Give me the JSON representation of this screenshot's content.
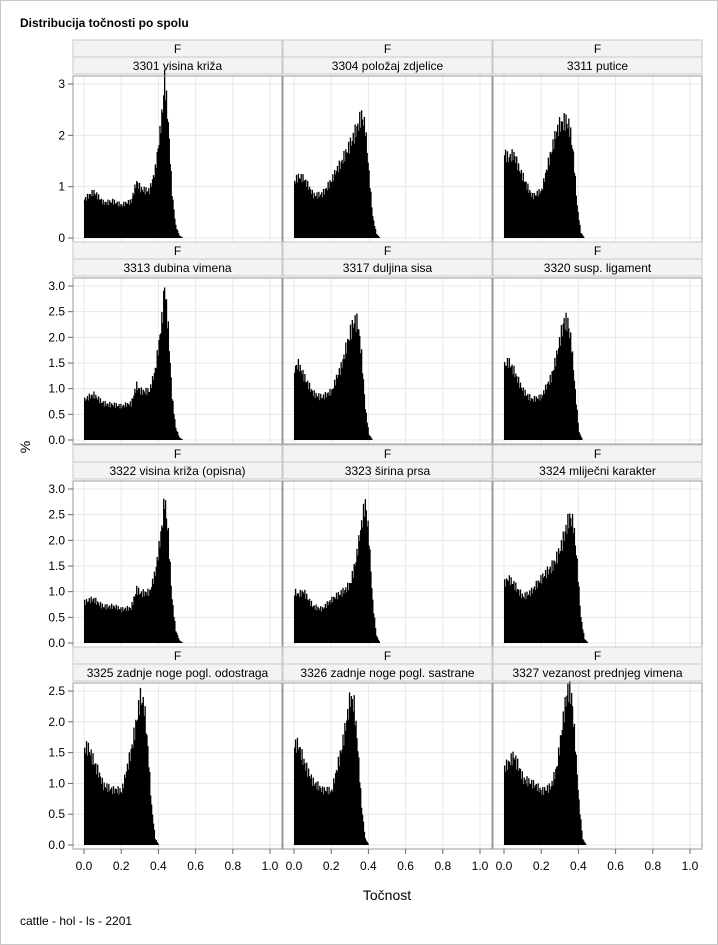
{
  "page": {
    "title": "Distribucija točnosti po spolu",
    "footer": "cattle - hol - ls - 2201"
  },
  "colors": {
    "bars": "#000000",
    "grid": "#e8e8e8",
    "header_bg": "#f3f3f6",
    "border": "#999999"
  },
  "chart_data": {
    "type": "bar",
    "title": "Distribucija točnosti po spolu",
    "xlabel": "Točnost",
    "ylabel": "%",
    "xlim": [
      0.0,
      1.0
    ],
    "x_ticks": [
      "0.0",
      "0.2",
      "0.4",
      "0.6",
      "0.8",
      "1.0"
    ],
    "grid": true,
    "layout": "4 rows x 3 columns",
    "row_axes": [
      {
        "ylim": [
          0,
          3
        ],
        "y_ticks": [
          "0",
          "1",
          "2",
          "3"
        ]
      },
      {
        "ylim": [
          0,
          3
        ],
        "y_ticks": [
          "0.0",
          "0.5",
          "1.0",
          "1.5",
          "2.0",
          "2.5",
          "3.0"
        ]
      },
      {
        "ylim": [
          0,
          3
        ],
        "y_ticks": [
          "0.0",
          "0.5",
          "1.0",
          "1.5",
          "2.0",
          "2.5",
          "3.0"
        ]
      },
      {
        "ylim": [
          0,
          2.5
        ],
        "y_ticks": [
          "0.0",
          "0.5",
          "1.0",
          "1.5",
          "2.0",
          "2.5"
        ]
      }
    ],
    "panels": [
      {
        "sex": "F",
        "trait": "3301 visina križa",
        "x": [
          0.0,
          0.05,
          0.1,
          0.15,
          0.2,
          0.25,
          0.28,
          0.3,
          0.35,
          0.38,
          0.4,
          0.42,
          0.43,
          0.45,
          0.47,
          0.49,
          0.51,
          0.53
        ],
        "y": [
          0.75,
          0.85,
          0.7,
          0.75,
          0.62,
          0.68,
          1.1,
          1.0,
          0.95,
          1.3,
          1.8,
          2.4,
          3.0,
          2.2,
          0.9,
          0.25,
          0.05,
          0.0
        ]
      },
      {
        "sex": "F",
        "trait": "3304 položaj zdjelice",
        "x": [
          0.0,
          0.02,
          0.05,
          0.1,
          0.15,
          0.2,
          0.25,
          0.3,
          0.33,
          0.36,
          0.38,
          0.4,
          0.42,
          0.44,
          0.46
        ],
        "y": [
          1.1,
          1.15,
          1.1,
          0.85,
          0.9,
          1.1,
          1.4,
          1.9,
          2.2,
          2.4,
          2.1,
          1.2,
          0.4,
          0.08,
          0.0
        ]
      },
      {
        "sex": "F",
        "trait": "3311 putice",
        "x": [
          0.0,
          0.02,
          0.05,
          0.08,
          0.1,
          0.15,
          0.2,
          0.25,
          0.28,
          0.3,
          0.33,
          0.35,
          0.37,
          0.39,
          0.41,
          0.43
        ],
        "y": [
          1.65,
          1.5,
          1.55,
          1.3,
          1.2,
          0.85,
          0.9,
          1.6,
          2.1,
          2.3,
          2.4,
          2.2,
          1.6,
          0.6,
          0.1,
          0.0
        ]
      },
      {
        "sex": "F",
        "trait": "3313 dubina vimena",
        "x": [
          0.0,
          0.05,
          0.1,
          0.15,
          0.2,
          0.25,
          0.28,
          0.3,
          0.35,
          0.38,
          0.4,
          0.42,
          0.43,
          0.45,
          0.47,
          0.49,
          0.51,
          0.53
        ],
        "y": [
          0.75,
          0.85,
          0.75,
          0.7,
          0.62,
          0.7,
          1.1,
          1.0,
          0.95,
          1.3,
          1.8,
          2.4,
          3.0,
          2.2,
          0.9,
          0.25,
          0.05,
          0.0
        ]
      },
      {
        "sex": "F",
        "trait": "3317 duljina sisa",
        "x": [
          0.0,
          0.02,
          0.05,
          0.1,
          0.15,
          0.2,
          0.25,
          0.28,
          0.3,
          0.32,
          0.34,
          0.36,
          0.38,
          0.4,
          0.42
        ],
        "y": [
          1.35,
          1.4,
          1.2,
          0.95,
          0.85,
          0.9,
          1.4,
          1.9,
          2.2,
          2.4,
          2.3,
          1.6,
          0.6,
          0.1,
          0.0
        ]
      },
      {
        "sex": "F",
        "trait": "3320 susp. ligament",
        "x": [
          0.0,
          0.02,
          0.05,
          0.1,
          0.15,
          0.2,
          0.25,
          0.28,
          0.3,
          0.32,
          0.34,
          0.36,
          0.38,
          0.4,
          0.42
        ],
        "y": [
          1.4,
          1.45,
          1.3,
          1.0,
          0.8,
          0.8,
          1.2,
          1.7,
          2.1,
          2.4,
          2.3,
          1.8,
          0.9,
          0.15,
          0.0
        ]
      },
      {
        "sex": "F",
        "trait": "3322 visina križa (opisna)",
        "x": [
          0.0,
          0.05,
          0.1,
          0.15,
          0.2,
          0.25,
          0.28,
          0.3,
          0.35,
          0.38,
          0.4,
          0.42,
          0.43,
          0.45,
          0.47,
          0.49,
          0.51,
          0.53
        ],
        "y": [
          0.75,
          0.85,
          0.75,
          0.7,
          0.62,
          0.7,
          1.1,
          1.0,
          0.95,
          1.3,
          1.8,
          2.4,
          2.9,
          2.2,
          0.9,
          0.25,
          0.05,
          0.0
        ]
      },
      {
        "sex": "F",
        "trait": "3323 širina prsa",
        "x": [
          0.0,
          0.02,
          0.05,
          0.1,
          0.15,
          0.2,
          0.25,
          0.3,
          0.33,
          0.36,
          0.38,
          0.4,
          0.42,
          0.44,
          0.46
        ],
        "y": [
          0.95,
          0.9,
          1.0,
          0.75,
          0.65,
          0.8,
          1.0,
          1.2,
          1.6,
          2.2,
          2.6,
          2.0,
          0.8,
          0.15,
          0.0
        ]
      },
      {
        "sex": "F",
        "trait": "3324 mliječni karakter",
        "x": [
          0.0,
          0.02,
          0.05,
          0.1,
          0.15,
          0.2,
          0.25,
          0.3,
          0.33,
          0.35,
          0.37,
          0.39,
          0.41,
          0.43,
          0.45
        ],
        "y": [
          1.1,
          1.2,
          1.15,
          0.95,
          1.0,
          1.2,
          1.5,
          1.9,
          2.2,
          2.35,
          2.2,
          1.5,
          0.5,
          0.08,
          0.0
        ]
      },
      {
        "sex": "F",
        "trait": "3325 zadnje noge pogl. odostraga",
        "x": [
          0.0,
          0.02,
          0.05,
          0.08,
          0.1,
          0.15,
          0.2,
          0.25,
          0.28,
          0.3,
          0.32,
          0.34,
          0.36,
          0.38,
          0.4
        ],
        "y": [
          1.5,
          1.55,
          1.4,
          1.2,
          1.0,
          0.85,
          0.85,
          1.6,
          2.1,
          2.4,
          2.2,
          1.5,
          0.6,
          0.1,
          0.0
        ]
      },
      {
        "sex": "F",
        "trait": "3326 zadnje noge pogl. sastrane",
        "x": [
          0.0,
          0.02,
          0.05,
          0.08,
          0.1,
          0.15,
          0.2,
          0.25,
          0.28,
          0.3,
          0.32,
          0.34,
          0.36,
          0.38,
          0.4
        ],
        "y": [
          1.55,
          1.6,
          1.4,
          1.2,
          1.05,
          0.85,
          0.85,
          1.6,
          2.1,
          2.4,
          2.2,
          1.5,
          0.6,
          0.1,
          0.0
        ]
      },
      {
        "sex": "F",
        "trait": "3327 vezanost prednjeg vimena",
        "x": [
          0.0,
          0.02,
          0.05,
          0.08,
          0.1,
          0.15,
          0.2,
          0.25,
          0.28,
          0.3,
          0.32,
          0.34,
          0.36,
          0.38,
          0.4,
          0.42,
          0.44
        ],
        "y": [
          1.2,
          1.3,
          1.5,
          1.3,
          1.1,
          0.95,
          0.85,
          1.0,
          1.3,
          1.7,
          2.1,
          2.4,
          2.3,
          1.6,
          0.7,
          0.1,
          0.0
        ]
      }
    ]
  }
}
